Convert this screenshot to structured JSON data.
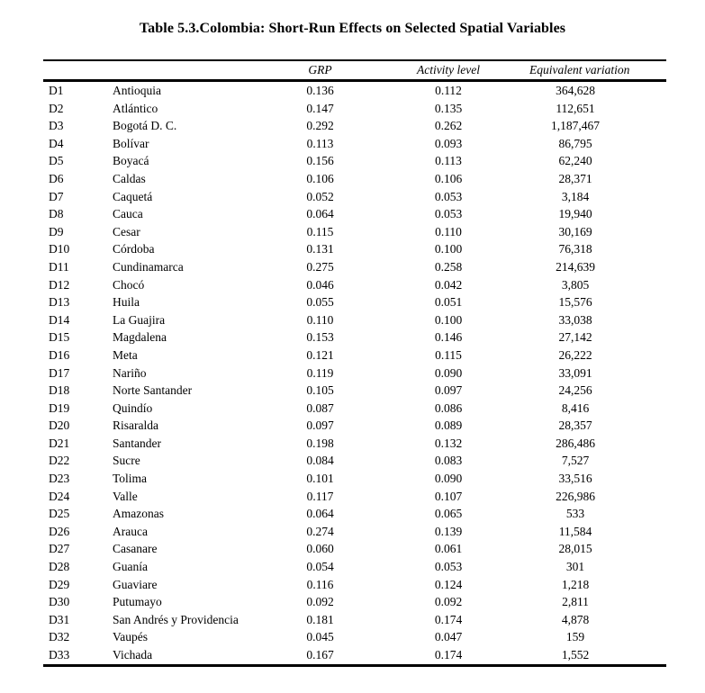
{
  "page": {
    "title": "Table 5.3.Colombia: Short-Run Effects on Selected Spatial Variables"
  },
  "table": {
    "columns": {
      "code": "",
      "name": "",
      "grp": "GRP",
      "activity": "Activity level",
      "ev": "Equivalent variation"
    },
    "rows": [
      {
        "code": "D1",
        "name": "Antioquia",
        "grp": "0.136",
        "activity": "0.112",
        "ev": "364,628"
      },
      {
        "code": "D2",
        "name": "Atlántico",
        "grp": "0.147",
        "activity": "0.135",
        "ev": "112,651"
      },
      {
        "code": "D3",
        "name": "Bogotá D. C.",
        "grp": "0.292",
        "activity": "0.262",
        "ev": "1,187,467"
      },
      {
        "code": "D4",
        "name": "Bolívar",
        "grp": "0.113",
        "activity": "0.093",
        "ev": "86,795"
      },
      {
        "code": "D5",
        "name": "Boyacá",
        "grp": "0.156",
        "activity": "0.113",
        "ev": "62,240"
      },
      {
        "code": "D6",
        "name": "Caldas",
        "grp": "0.106",
        "activity": "0.106",
        "ev": "28,371"
      },
      {
        "code": "D7",
        "name": "Caquetá",
        "grp": "0.052",
        "activity": "0.053",
        "ev": "3,184"
      },
      {
        "code": "D8",
        "name": "Cauca",
        "grp": "0.064",
        "activity": "0.053",
        "ev": "19,940"
      },
      {
        "code": "D9",
        "name": "Cesar",
        "grp": "0.115",
        "activity": "0.110",
        "ev": "30,169"
      },
      {
        "code": "D10",
        "name": "Córdoba",
        "grp": "0.131",
        "activity": "0.100",
        "ev": "76,318"
      },
      {
        "code": "D11",
        "name": "Cundinamarca",
        "grp": "0.275",
        "activity": "0.258",
        "ev": "214,639"
      },
      {
        "code": "D12",
        "name": "Chocó",
        "grp": "0.046",
        "activity": "0.042",
        "ev": "3,805"
      },
      {
        "code": "D13",
        "name": "Huila",
        "grp": "0.055",
        "activity": "0.051",
        "ev": "15,576"
      },
      {
        "code": "D14",
        "name": "La Guajira",
        "grp": "0.110",
        "activity": "0.100",
        "ev": "33,038"
      },
      {
        "code": "D15",
        "name": "Magdalena",
        "grp": "0.153",
        "activity": "0.146",
        "ev": "27,142"
      },
      {
        "code": "D16",
        "name": "Meta",
        "grp": "0.121",
        "activity": "0.115",
        "ev": "26,222"
      },
      {
        "code": "D17",
        "name": "Nariño",
        "grp": "0.119",
        "activity": "0.090",
        "ev": "33,091"
      },
      {
        "code": "D18",
        "name": "Norte Santander",
        "grp": "0.105",
        "activity": "0.097",
        "ev": "24,256"
      },
      {
        "code": "D19",
        "name": "Quindío",
        "grp": "0.087",
        "activity": "0.086",
        "ev": "8,416"
      },
      {
        "code": "D20",
        "name": "Risaralda",
        "grp": "0.097",
        "activity": "0.089",
        "ev": "28,357"
      },
      {
        "code": "D21",
        "name": "Santander",
        "grp": "0.198",
        "activity": "0.132",
        "ev": "286,486"
      },
      {
        "code": "D22",
        "name": "Sucre",
        "grp": "0.084",
        "activity": "0.083",
        "ev": "7,527"
      },
      {
        "code": "D23",
        "name": "Tolima",
        "grp": "0.101",
        "activity": "0.090",
        "ev": "33,516"
      },
      {
        "code": "D24",
        "name": "Valle",
        "grp": "0.117",
        "activity": "0.107",
        "ev": "226,986"
      },
      {
        "code": "D25",
        "name": "Amazonas",
        "grp": "0.064",
        "activity": "0.065",
        "ev": "533"
      },
      {
        "code": "D26",
        "name": "Arauca",
        "grp": "0.274",
        "activity": "0.139",
        "ev": "11,584"
      },
      {
        "code": "D27",
        "name": "Casanare",
        "grp": "0.060",
        "activity": "0.061",
        "ev": "28,015"
      },
      {
        "code": "D28",
        "name": "Guanía",
        "grp": "0.054",
        "activity": "0.053",
        "ev": "301"
      },
      {
        "code": "D29",
        "name": "Guaviare",
        "grp": "0.116",
        "activity": "0.124",
        "ev": "1,218"
      },
      {
        "code": "D30",
        "name": "Putumayo",
        "grp": "0.092",
        "activity": "0.092",
        "ev": "2,811"
      },
      {
        "code": "D31",
        "name": "San Andrés y Providencia",
        "grp": "0.181",
        "activity": "0.174",
        "ev": "4,878"
      },
      {
        "code": "D32",
        "name": "Vaupés",
        "grp": "0.045",
        "activity": "0.047",
        "ev": "159"
      },
      {
        "code": "D33",
        "name": "Vichada",
        "grp": "0.167",
        "activity": "0.174",
        "ev": "1,552"
      }
    ]
  }
}
